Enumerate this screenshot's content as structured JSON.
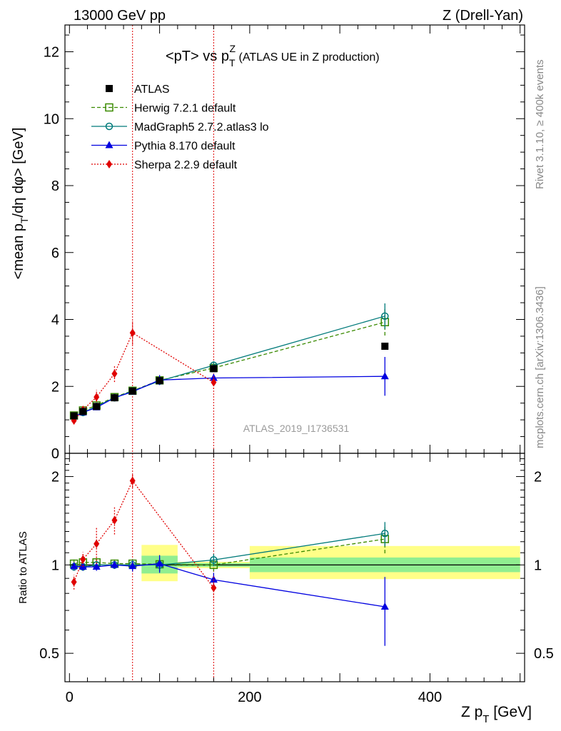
{
  "header": {
    "left": "13000 GeV pp",
    "right": "Z (Drell-Yan)"
  },
  "side_labels": {
    "rivet": "Rivet 3.1.10, ≥ 400k events",
    "mcplots": "mcplots.cern.ch [arXiv:1306.3436]"
  },
  "watermark": "ATLAS_2019_I1736531",
  "chart_data": [
    {
      "type": "line",
      "title": "<pT> vs p_T^Z (ATLAS UE in Z production)",
      "xlabel": "Z p_T [GeV]",
      "ylabel": "<mean p_T/dη dφ> [GeV]",
      "xlim": [
        -5,
        505
      ],
      "ylim": [
        0,
        12.8
      ],
      "yticks": [
        0,
        2,
        4,
        6,
        8,
        10,
        12
      ],
      "xticks": [
        0,
        200,
        400
      ],
      "grid": false,
      "legend_position": "top-left",
      "vertical_lines": [
        70,
        160
      ],
      "series": [
        {
          "name": "ATLAS",
          "color": "#000000",
          "marker": "filled-square",
          "line": "none",
          "x": [
            5,
            15,
            30,
            50,
            70,
            100,
            160,
            350
          ],
          "y": [
            1.12,
            1.25,
            1.4,
            1.66,
            1.86,
            2.17,
            2.53,
            3.2
          ]
        },
        {
          "name": "Herwig 7.2.1 default",
          "color": "#3a8a00",
          "marker": "open-square",
          "line": "dashed",
          "x": [
            5,
            15,
            30,
            50,
            70,
            100,
            160,
            350
          ],
          "y": [
            1.13,
            1.28,
            1.43,
            1.68,
            1.87,
            2.18,
            2.55,
            3.92
          ],
          "err": [
            0.05,
            0.05,
            0.06,
            0.06,
            0.07,
            0.1,
            0.12,
            0.4
          ]
        },
        {
          "name": "MadGraph5 2.7.2.atlas3 lo",
          "color": "#007a7a",
          "marker": "open-circle",
          "line": "solid",
          "x": [
            5,
            15,
            30,
            50,
            70,
            100,
            160,
            350
          ],
          "y": [
            1.1,
            1.22,
            1.4,
            1.66,
            1.86,
            2.16,
            2.63,
            4.1
          ],
          "err": [
            0.04,
            0.04,
            0.05,
            0.06,
            0.07,
            0.1,
            0.12,
            0.38
          ]
        },
        {
          "name": "Pythia 8.170 default",
          "color": "#0000e0",
          "marker": "filled-triangle",
          "line": "solid",
          "x": [
            5,
            15,
            30,
            50,
            70,
            100,
            160,
            350
          ],
          "y": [
            1.1,
            1.22,
            1.37,
            1.66,
            1.84,
            2.19,
            2.25,
            2.3
          ],
          "err": [
            0.04,
            0.04,
            0.05,
            0.06,
            0.07,
            0.15,
            0.12,
            0.58
          ]
        },
        {
          "name": "Sherpa 2.2.9 default",
          "color": "#e00000",
          "marker": "filled-diamond",
          "line": "dotted",
          "x": [
            5,
            15,
            30,
            50,
            70,
            160
          ],
          "y": [
            0.98,
            1.3,
            1.68,
            2.38,
            3.6,
            2.12
          ],
          "err": [
            0.06,
            0.08,
            0.22,
            0.25,
            0.35,
            0.2
          ]
        }
      ]
    },
    {
      "type": "line",
      "title": "",
      "xlabel": "Z p_T [GeV]",
      "ylabel": "Ratio to ATLAS",
      "xlim": [
        -5,
        505
      ],
      "ylim": [
        0.4,
        2.4
      ],
      "scale": "log",
      "yticks": [
        0.5,
        1,
        2
      ],
      "xticks": [
        0,
        200,
        400
      ],
      "grid": false,
      "uncertainty_bands": [
        {
          "x0": 80,
          "x1": 120,
          "stat": [
            0.935,
            1.075
          ],
          "total": [
            0.88,
            1.17
          ]
        },
        {
          "x0": 200,
          "x1": 500,
          "stat": [
            0.945,
            1.06
          ],
          "total": [
            0.895,
            1.16
          ]
        },
        {
          "x0": 120,
          "x1": 200,
          "stat": [
            0.985,
            1.015
          ],
          "total": [
            0.975,
            1.025
          ]
        }
      ],
      "series": [
        {
          "name": "Herwig 7.2.1 default",
          "color": "#3a8a00",
          "marker": "open-square",
          "line": "dashed",
          "x": [
            5,
            15,
            30,
            50,
            70,
            100,
            160,
            350
          ],
          "y": [
            1.01,
            1.02,
            1.02,
            1.01,
            1.01,
            1.005,
            1.0,
            1.225
          ],
          "err": [
            0.04,
            0.04,
            0.04,
            0.04,
            0.04,
            0.05,
            0.05,
            0.13
          ]
        },
        {
          "name": "MadGraph5 2.7.2.atlas3 lo",
          "color": "#007a7a",
          "marker": "open-circle",
          "line": "solid",
          "x": [
            5,
            15,
            30,
            50,
            70,
            100,
            160,
            350
          ],
          "y": [
            0.985,
            0.985,
            1.0,
            1.0,
            1.0,
            1.0,
            1.04,
            1.28
          ],
          "err": [
            0.03,
            0.03,
            0.03,
            0.03,
            0.04,
            0.05,
            0.05,
            0.12
          ]
        },
        {
          "name": "Pythia 8.170 default",
          "color": "#0000e0",
          "marker": "filled-triangle",
          "line": "solid",
          "x": [
            5,
            15,
            30,
            50,
            70,
            100,
            160,
            350
          ],
          "y": [
            0.99,
            0.985,
            0.985,
            1.0,
            0.99,
            1.01,
            0.89,
            0.72
          ],
          "err": [
            0.03,
            0.03,
            0.03,
            0.03,
            0.04,
            0.07,
            0.05,
            0.19
          ]
        },
        {
          "name": "Sherpa 2.2.9 default",
          "color": "#e00000",
          "marker": "filled-diamond",
          "line": "dotted",
          "x": [
            5,
            15,
            30,
            50,
            70,
            160
          ],
          "y": [
            0.875,
            1.045,
            1.18,
            1.42,
            1.935,
            0.835
          ],
          "err": [
            0.05,
            0.06,
            0.17,
            0.15,
            0.1,
            0.08
          ]
        }
      ]
    }
  ]
}
